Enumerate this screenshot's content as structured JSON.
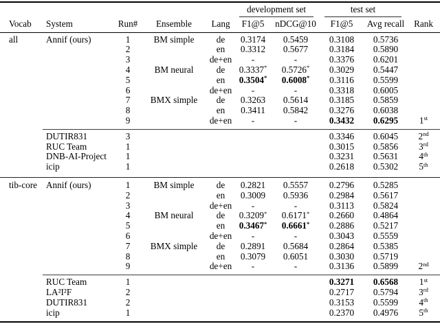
{
  "page": {
    "background": "#ffffff",
    "text_color": "#000000",
    "rule_color": "#000000"
  },
  "table": {
    "spanners": [
      {
        "label": "development set"
      },
      {
        "label": "test set"
      }
    ],
    "headers": {
      "vocab": "Vocab",
      "system": "System",
      "run": "Run#",
      "ensemble": "Ensemble",
      "lang": "Lang",
      "dev_f1": "F1@5",
      "dev_ndcg": "nDCG@10",
      "test_f1": "F1@5",
      "test_recall": "Avg recall",
      "rank": "Rank"
    },
    "sections": [
      {
        "vocab": "all",
        "groups": [
          {
            "rows": [
              {
                "system": "Annif (ours)",
                "run": "1",
                "ensemble": "BM simple",
                "lang": "de",
                "dev_f1": "0.3174",
                "dev_ndcg": "0.5459",
                "test_f1": "0.3108",
                "test_recall": "0.5736",
                "rank": "",
                "bold": []
              },
              {
                "system": "",
                "run": "2",
                "ensemble": "",
                "lang": "en",
                "dev_f1": "0.3312",
                "dev_ndcg": "0.5677",
                "test_f1": "0.3184",
                "test_recall": "0.5890",
                "rank": "",
                "bold": []
              },
              {
                "system": "",
                "run": "3",
                "ensemble": "",
                "lang": "de+en",
                "dev_f1": "-",
                "dev_ndcg": "-",
                "test_f1": "0.3376",
                "test_recall": "0.6201",
                "rank": "",
                "bold": []
              },
              {
                "system": "",
                "run": "4",
                "ensemble": "BM neural",
                "lang": "de",
                "dev_f1": "0.3337*",
                "dev_ndcg": "0.5726*",
                "test_f1": "0.3029",
                "test_recall": "0.5447",
                "rank": "",
                "bold": []
              },
              {
                "system": "",
                "run": "5",
                "ensemble": "",
                "lang": "en",
                "dev_f1": "0.3504*",
                "dev_ndcg": "0.6008*",
                "test_f1": "0.3116",
                "test_recall": "0.5599",
                "rank": "",
                "bold": [
                  "dev_f1",
                  "dev_ndcg"
                ]
              },
              {
                "system": "",
                "run": "6",
                "ensemble": "",
                "lang": "de+en",
                "dev_f1": "-",
                "dev_ndcg": "-",
                "test_f1": "0.3318",
                "test_recall": "0.6005",
                "rank": "",
                "bold": []
              },
              {
                "system": "",
                "run": "7",
                "ensemble": "BMX simple",
                "lang": "de",
                "dev_f1": "0.3263",
                "dev_ndcg": "0.5614",
                "test_f1": "0.3185",
                "test_recall": "0.5859",
                "rank": "",
                "bold": []
              },
              {
                "system": "",
                "run": "8",
                "ensemble": "",
                "lang": "en",
                "dev_f1": "0.3411",
                "dev_ndcg": "0.5842",
                "test_f1": "0.3276",
                "test_recall": "0.6038",
                "rank": "",
                "bold": []
              },
              {
                "system": "",
                "run": "9",
                "ensemble": "",
                "lang": "de+en",
                "dev_f1": "-",
                "dev_ndcg": "-",
                "test_f1": "0.3432",
                "test_recall": "0.6295",
                "rank": "1st",
                "bold": [
                  "test_f1",
                  "test_recall"
                ]
              }
            ]
          },
          {
            "rows": [
              {
                "system": "DUTIR831",
                "run": "3",
                "ensemble": "",
                "lang": "",
                "dev_f1": "",
                "dev_ndcg": "",
                "test_f1": "0.3346",
                "test_recall": "0.6045",
                "rank": "2nd",
                "bold": []
              },
              {
                "system": "RUC Team",
                "run": "1",
                "ensemble": "",
                "lang": "",
                "dev_f1": "",
                "dev_ndcg": "",
                "test_f1": "0.3015",
                "test_recall": "0.5856",
                "rank": "3rd",
                "bold": []
              },
              {
                "system": "DNB-AI-Project",
                "run": "1",
                "ensemble": "",
                "lang": "",
                "dev_f1": "",
                "dev_ndcg": "",
                "test_f1": "0.3231",
                "test_recall": "0.5631",
                "rank": "4th",
                "bold": []
              },
              {
                "system": "icip",
                "run": "1",
                "ensemble": "",
                "lang": "",
                "dev_f1": "",
                "dev_ndcg": "",
                "test_f1": "0.2618",
                "test_recall": "0.5302",
                "rank": "5th",
                "bold": []
              }
            ]
          }
        ]
      },
      {
        "vocab": "tib-core",
        "groups": [
          {
            "rows": [
              {
                "system": "Annif (ours)",
                "run": "1",
                "ensemble": "BM simple",
                "lang": "de",
                "dev_f1": "0.2821",
                "dev_ndcg": "0.5557",
                "test_f1": "0.2796",
                "test_recall": "0.5285",
                "rank": "",
                "bold": []
              },
              {
                "system": "",
                "run": "2",
                "ensemble": "",
                "lang": "en",
                "dev_f1": "0.3009",
                "dev_ndcg": "0.5936",
                "test_f1": "0.2984",
                "test_recall": "0.5617",
                "rank": "",
                "bold": []
              },
              {
                "system": "",
                "run": "3",
                "ensemble": "",
                "lang": "de+en",
                "dev_f1": "-",
                "dev_ndcg": "-",
                "test_f1": "0.3113",
                "test_recall": "0.5824",
                "rank": "",
                "bold": []
              },
              {
                "system": "",
                "run": "4",
                "ensemble": "BM neural",
                "lang": "de",
                "dev_f1": "0.3209*",
                "dev_ndcg": "0.6171*",
                "test_f1": "0.2660",
                "test_recall": "0.4864",
                "rank": "",
                "bold": []
              },
              {
                "system": "",
                "run": "5",
                "ensemble": "",
                "lang": "en",
                "dev_f1": "0.3467*",
                "dev_ndcg": "0.6661*",
                "test_f1": "0.2886",
                "test_recall": "0.5217",
                "rank": "",
                "bold": [
                  "dev_f1",
                  "dev_ndcg"
                ]
              },
              {
                "system": "",
                "run": "6",
                "ensemble": "",
                "lang": "de+en",
                "dev_f1": "-",
                "dev_ndcg": "-",
                "test_f1": "0.3043",
                "test_recall": "0.5559",
                "rank": "",
                "bold": []
              },
              {
                "system": "",
                "run": "7",
                "ensemble": "BMX simple",
                "lang": "de",
                "dev_f1": "0.2891",
                "dev_ndcg": "0.5684",
                "test_f1": "0.2864",
                "test_recall": "0.5385",
                "rank": "",
                "bold": []
              },
              {
                "system": "",
                "run": "8",
                "ensemble": "",
                "lang": "en",
                "dev_f1": "0.3079",
                "dev_ndcg": "0.6051",
                "test_f1": "0.3030",
                "test_recall": "0.5719",
                "rank": "",
                "bold": []
              },
              {
                "system": "",
                "run": "9",
                "ensemble": "",
                "lang": "de+en",
                "dev_f1": "-",
                "dev_ndcg": "-",
                "test_f1": "0.3136",
                "test_recall": "0.5899",
                "rank": "2nd",
                "bold": []
              }
            ]
          },
          {
            "rows": [
              {
                "system": "RUC Team",
                "run": "1",
                "ensemble": "",
                "lang": "",
                "dev_f1": "",
                "dev_ndcg": "",
                "test_f1": "0.3271",
                "test_recall": "0.6568",
                "rank": "1st",
                "bold": [
                  "test_f1",
                  "test_recall"
                ]
              },
              {
                "system": "LA²I²F",
                "run": "2",
                "ensemble": "",
                "lang": "",
                "dev_f1": "",
                "dev_ndcg": "",
                "test_f1": "0.2717",
                "test_recall": "0.5794",
                "rank": "3rd",
                "bold": []
              },
              {
                "system": "DUTIR831",
                "run": "2",
                "ensemble": "",
                "lang": "",
                "dev_f1": "",
                "dev_ndcg": "",
                "test_f1": "0.3153",
                "test_recall": "0.5599",
                "rank": "4th",
                "bold": []
              },
              {
                "system": "icip",
                "run": "1",
                "ensemble": "",
                "lang": "",
                "dev_f1": "",
                "dev_ndcg": "",
                "test_f1": "0.2370",
                "test_recall": "0.4976",
                "rank": "5th",
                "bold": []
              }
            ]
          }
        ]
      }
    ]
  }
}
